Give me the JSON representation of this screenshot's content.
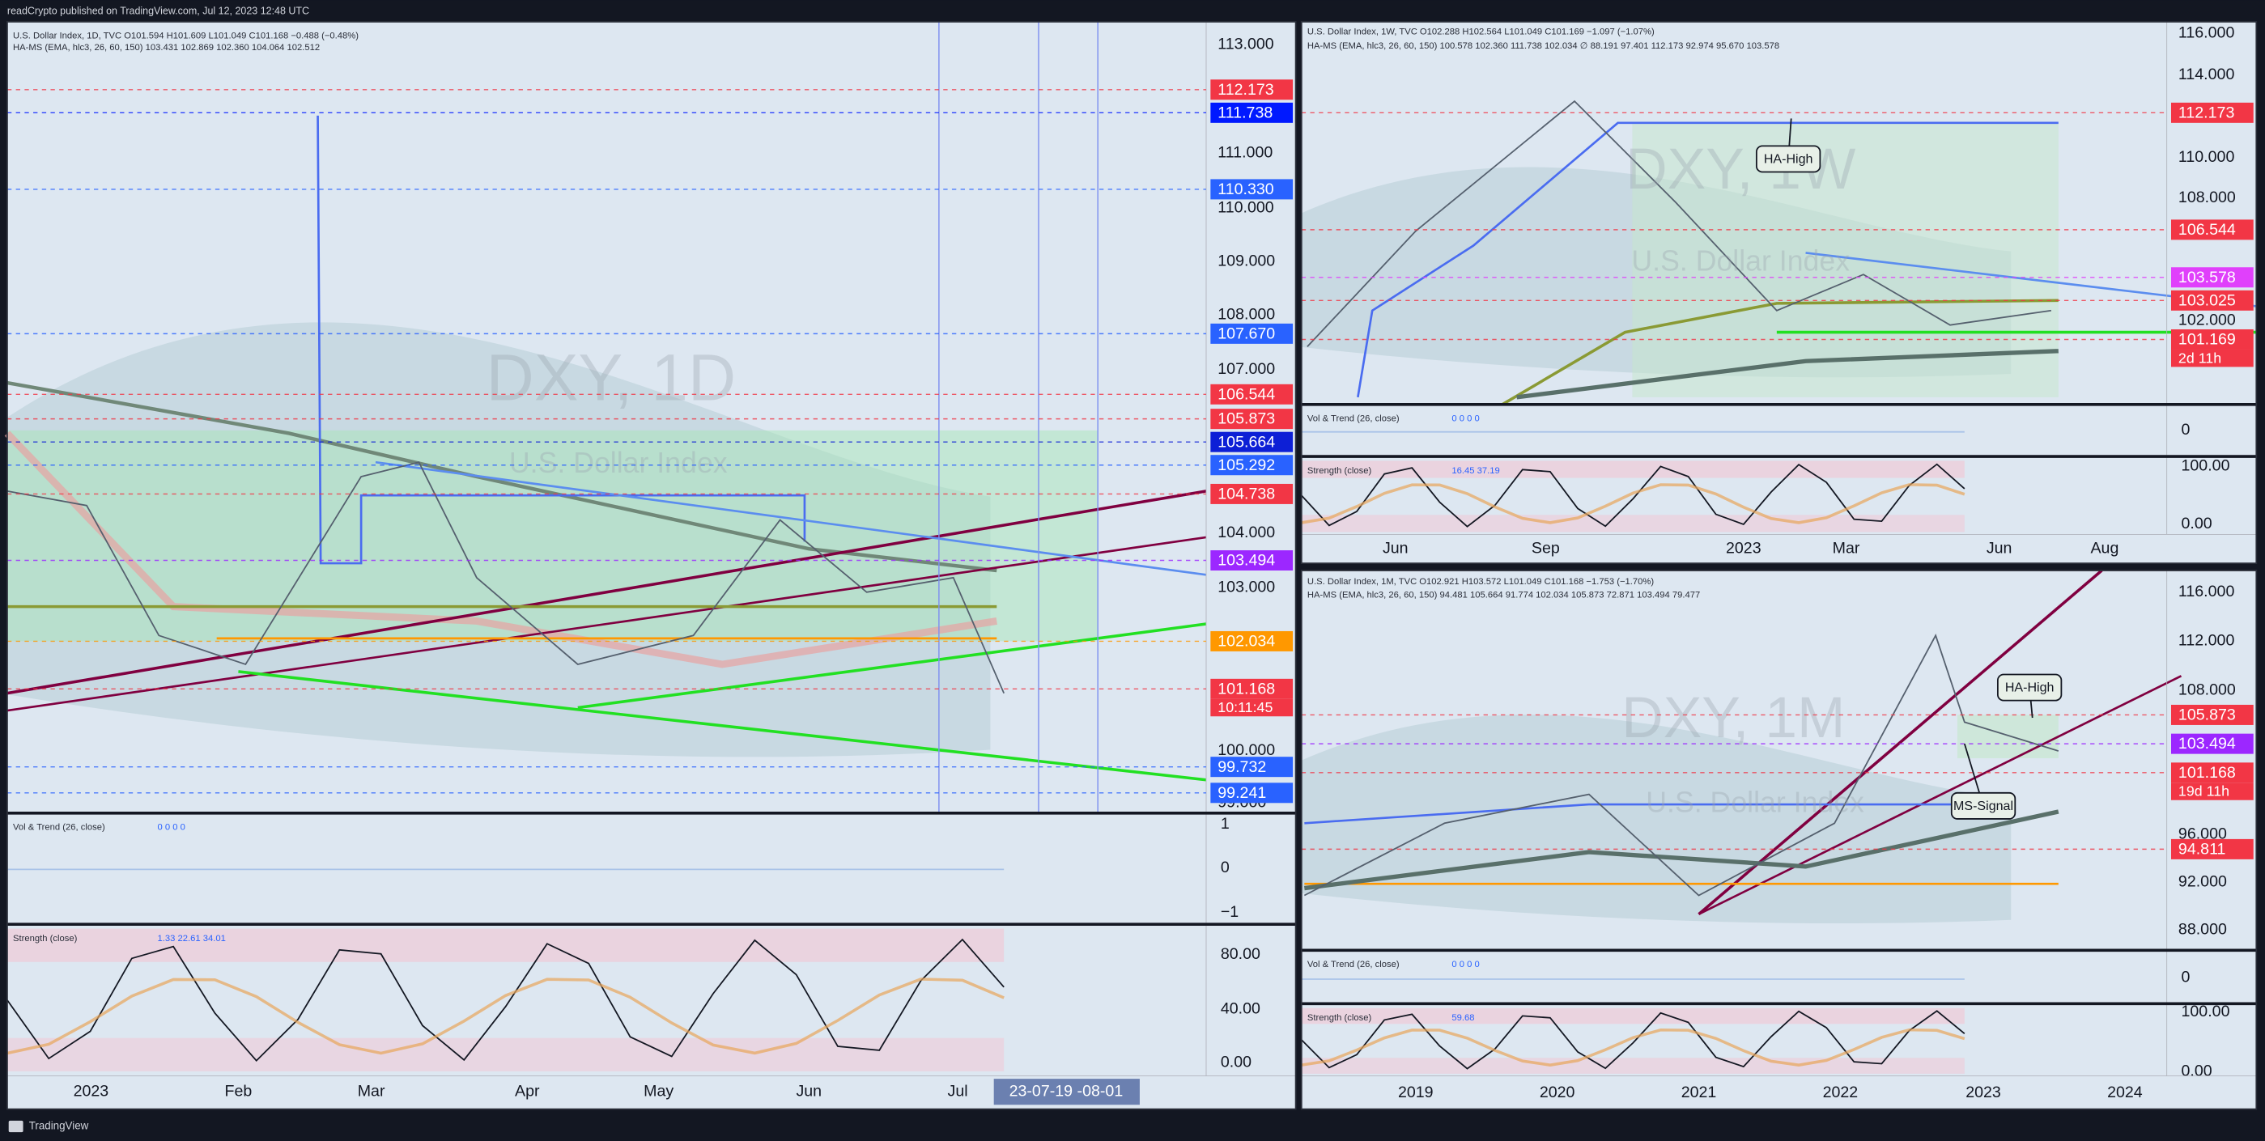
{
  "header": "readCrypto published on TradingView.com, Jul 12, 2023 12:48 UTC",
  "footer": "TradingView",
  "panels": [
    {
      "legend": [
        "U.S. Dollar Index, 1D, TVC O101.594 H101.609 L101.049 C101.168 −0.488 (−0.48%)",
        "HA-MS (EMA, hlc3, 26, 60, 150) 103.431 102.869 102.360 104.064 102.512"
      ],
      "watermark": "DXY, 1D",
      "watermark_sub": "U.S. Dollar Index",
      "price_ticks": [
        "113.000",
        "111.000",
        "110.000",
        "109.000",
        "108.000",
        "107.000",
        "104.000",
        "103.000",
        "100.000",
        "99.000"
      ],
      "price_labels": [
        {
          "text": "112.173",
          "color": "#f23645"
        },
        {
          "text": "111.738",
          "color": "#0019ff"
        },
        {
          "text": "110.330",
          "color": "#2962ff"
        },
        {
          "text": "107.670",
          "color": "#2962ff"
        },
        {
          "text": "106.544",
          "color": "#f23645"
        },
        {
          "text": "105.873",
          "color": "#f23645"
        },
        {
          "text": "105.664",
          "color": "#0d1fd6"
        },
        {
          "text": "105.292",
          "color": "#2962ff"
        },
        {
          "text": "104.738",
          "color": "#f23645"
        },
        {
          "text": "103.494",
          "color": "#9c27ff"
        },
        {
          "text": "102.034",
          "color": "#ff9800"
        },
        {
          "text": "101.168",
          "color": "#f23645"
        },
        {
          "text": "99.732",
          "color": "#2962ff"
        },
        {
          "text": "99.241",
          "color": "#2962ff"
        }
      ],
      "countdown": "10:11:45",
      "time_ticks": [
        "2023",
        "Feb",
        "Mar",
        "Apr",
        "May",
        "Jun",
        "Jul"
      ],
      "time_label": "23-07-19  -08-01",
      "annotations": [],
      "panes": [
        {
          "legend": "Vol & Trend (26, close)",
          "values": "0 0 0 0",
          "ticks": [
            "1",
            "0",
            "−1"
          ]
        },
        {
          "legend": "Strength (close)",
          "values": "1.33 22.61 34.01",
          "ticks": [
            "80.00",
            "40.00",
            "0.00"
          ]
        }
      ]
    },
    {
      "legend": [
        "U.S. Dollar Index, 1W, TVC O102.288 H102.564 L101.049 C101.169 −1.097 (−1.07%)",
        "HA-MS (EMA, hlc3, 26, 60, 150) 100.578 102.360 111.738 102.034 ∅ 88.191 97.401 112.173 92.974 95.670 103.578"
      ],
      "watermark": "DXY, 1W",
      "watermark_sub": "U.S. Dollar Index",
      "price_ticks": [
        "116.000",
        "114.000",
        "110.000",
        "108.000",
        "102.000"
      ],
      "price_labels": [
        {
          "text": "112.173",
          "color": "#f23645"
        },
        {
          "text": "106.544",
          "color": "#f23645"
        },
        {
          "text": "103.578",
          "color": "#e040fb"
        },
        {
          "text": "103.025",
          "color": "#f23645"
        },
        {
          "text": "101.169",
          "color": "#f23645"
        }
      ],
      "countdown": "2d 11h",
      "time_ticks": [
        "Jun",
        "Sep",
        "2023",
        "Mar",
        "Jun",
        "Aug"
      ],
      "annotations": [
        "HA-High"
      ],
      "panes": [
        {
          "legend": "Vol & Trend (26, close)",
          "values": "0 0 0 0",
          "ticks": [
            "0"
          ]
        },
        {
          "legend": "Strength (close)",
          "values": "16.45 37.19",
          "ticks": [
            "100.00",
            "0.00"
          ]
        }
      ]
    },
    {
      "legend": [
        "U.S. Dollar Index, 1M, TVC O102.921 H103.572 L101.049 C101.168 −1.753 (−1.70%)",
        "HA-MS (EMA, hlc3, 26, 60, 150) 94.481 105.664 91.774 102.034 105.873 72.871 103.494 79.477"
      ],
      "watermark": "DXY, 1M",
      "watermark_sub": "U.S. Dollar Index",
      "price_ticks": [
        "116.000",
        "112.000",
        "108.000",
        "96.000",
        "92.000",
        "88.000"
      ],
      "price_labels": [
        {
          "text": "105.873",
          "color": "#f23645"
        },
        {
          "text": "103.494",
          "color": "#9c27ff"
        },
        {
          "text": "101.168",
          "color": "#f23645"
        },
        {
          "text": "94.811",
          "color": "#f23645"
        }
      ],
      "countdown": "19d 11h",
      "time_ticks": [
        "2019",
        "2020",
        "2021",
        "2022",
        "2023",
        "2024"
      ],
      "annotations": [
        "HA-High",
        "MS-Signal"
      ],
      "panes": [
        {
          "legend": "Vol & Trend (26, close)",
          "values": "0 0 0 0",
          "ticks": [
            "0"
          ]
        },
        {
          "legend": "Strength (close)",
          "values": "59.68",
          "ticks": [
            "100.00",
            "0.00"
          ]
        }
      ]
    }
  ]
}
